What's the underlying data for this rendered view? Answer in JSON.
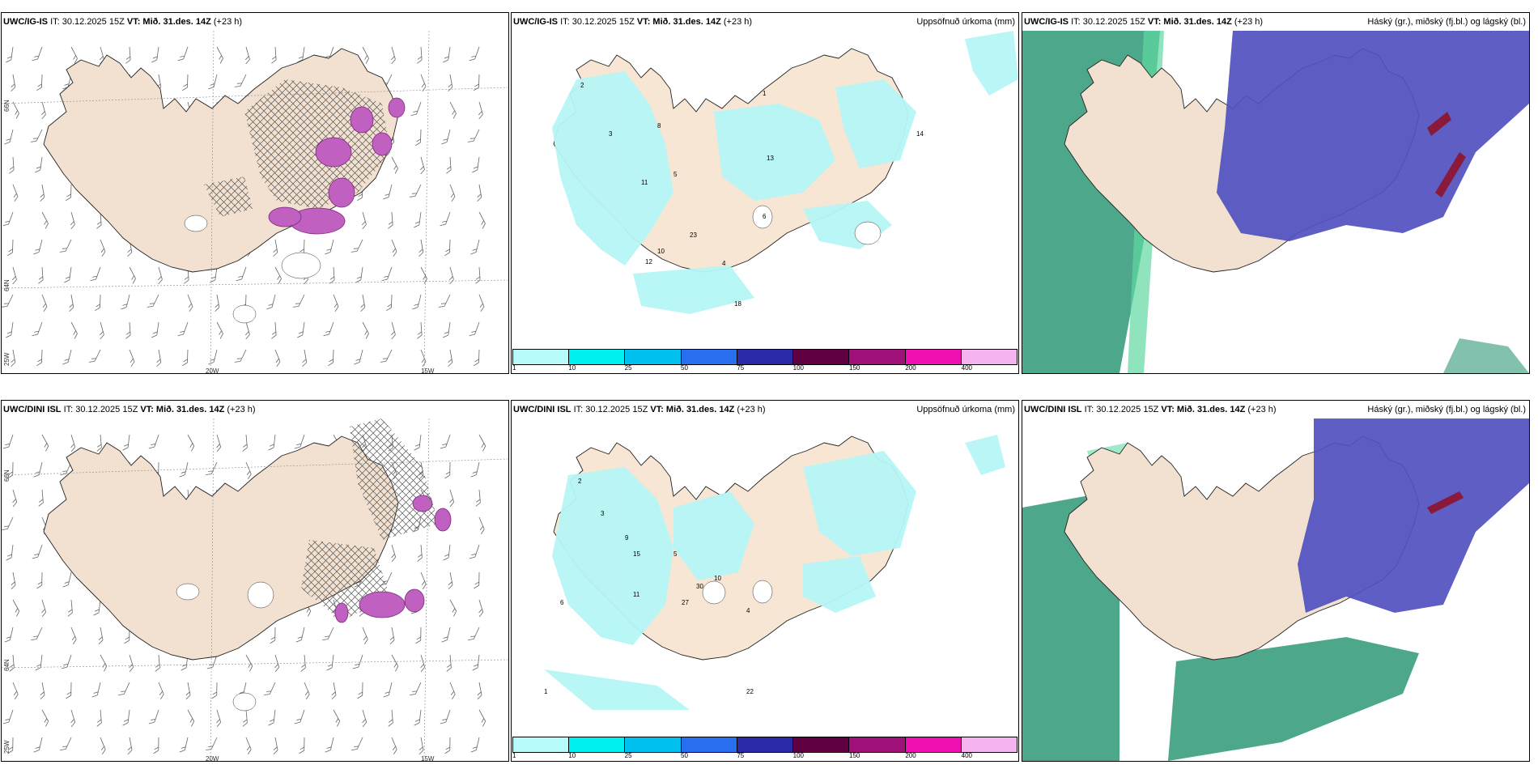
{
  "panels": [
    {
      "model": "UWC/IG-IS",
      "it": "IT: 30.12.2025 15Z",
      "vt_label": "VT:",
      "vt": "Mið. 31.des. 14Z",
      "lead": "(+23 h)",
      "right": ""
    },
    {
      "model": "UWC/IG-IS",
      "it": "IT: 30.12.2025 15Z",
      "vt_label": "VT:",
      "vt": "Mið. 31.des. 14Z",
      "lead": "(+23 h)",
      "right": "Uppsöfnuð úrkoma (mm)"
    },
    {
      "model": "UWC/IG-IS",
      "it": "IT: 30.12.2025 15Z",
      "vt_label": "VT:",
      "vt": "Mið. 31.des. 14Z",
      "lead": "(+23 h)",
      "right": "Háský (gr.), miðský (fj.bl.) og lágský (bl.)"
    },
    {
      "model": "UWC/DINI ISL",
      "it": "IT: 30.12.2025 15Z",
      "vt_label": "VT:",
      "vt": "Mið. 31.des. 14Z",
      "lead": "(+23 h)",
      "right": ""
    },
    {
      "model": "UWC/DINI ISL",
      "it": "IT: 30.12.2025 15Z",
      "vt_label": "VT:",
      "vt": "Mið. 31.des. 14Z",
      "lead": "(+23 h)",
      "right": "Uppsöfnuð úrkoma (mm)"
    },
    {
      "model": "UWC/DINI ISL",
      "it": "IT: 30.12.2025 15Z",
      "vt_label": "VT:",
      "vt": "Mið. 31.des. 14Z",
      "lead": "(+23 h)",
      "right": "Háský (gr.), miðský (fj.bl.) og lágský (bl.)"
    }
  ],
  "axes": {
    "lon": [
      "20W",
      "15W"
    ],
    "lat": [
      "66N",
      "64N"
    ],
    "corner": "25W"
  },
  "colorbar": {
    "ticks": [
      "1",
      "10",
      "25",
      "50",
      "75",
      "100",
      "150",
      "200",
      "400"
    ],
    "colors": [
      "#b8fbfb",
      "#00f0f0",
      "#00c0f0",
      "#2a6ef0",
      "#2a2aa8",
      "#600040",
      "#a0107a",
      "#f010b0",
      "#f4b4f0"
    ]
  },
  "colors": {
    "land": "#f7e6d4",
    "precip": "#b6f6f6",
    "precip_dark": "#5de3e8",
    "high_cloud": "#2e9877",
    "mid_cloud": "#5050c0",
    "low_cloud": "#2c70d8",
    "snow_hatch": "#555555",
    "magenta": "#c060c0"
  },
  "precip_labels_top": [
    "2",
    "3",
    "5",
    "8",
    "13",
    "23",
    "11",
    "10",
    "12",
    "6",
    "14",
    "4",
    "1",
    "18"
  ],
  "precip_labels_bottom": [
    "2",
    "3",
    "5",
    "9",
    "15",
    "27",
    "11",
    "10",
    "4",
    "6",
    "1",
    "22",
    "30"
  ]
}
